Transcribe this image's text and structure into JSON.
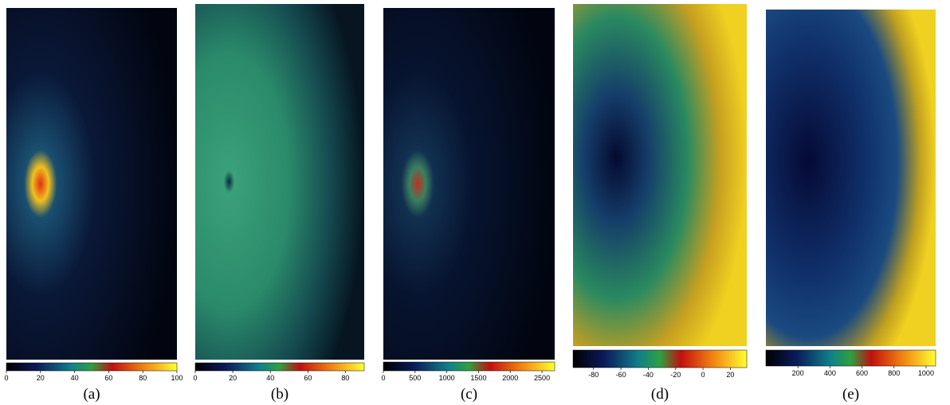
{
  "figure": {
    "panels": [
      {
        "label": "(a)",
        "colorbar": {
          "xlim": [
            0,
            100
          ],
          "ticks": [
            0,
            20,
            40,
            60,
            80,
            100
          ]
        }
      },
      {
        "label": "(b)",
        "colorbar": {
          "xlim": [
            0,
            90
          ],
          "ticks": [
            0,
            20,
            40,
            60,
            80
          ]
        }
      },
      {
        "label": "(c)",
        "colorbar": {
          "xlim": [
            0,
            2700
          ],
          "ticks": [
            0,
            500,
            1000,
            1500,
            2000,
            2500
          ]
        }
      },
      {
        "label": "(d)",
        "colorbar": {
          "xlim": [
            -95,
            32
          ],
          "ticks": [
            -80,
            -60,
            -40,
            -20,
            0,
            20
          ]
        }
      },
      {
        "label": "(e)",
        "colorbar": {
          "xlim": [
            0,
            1060
          ],
          "ticks": [
            200,
            400,
            600,
            800,
            1000
          ]
        }
      }
    ]
  }
}
